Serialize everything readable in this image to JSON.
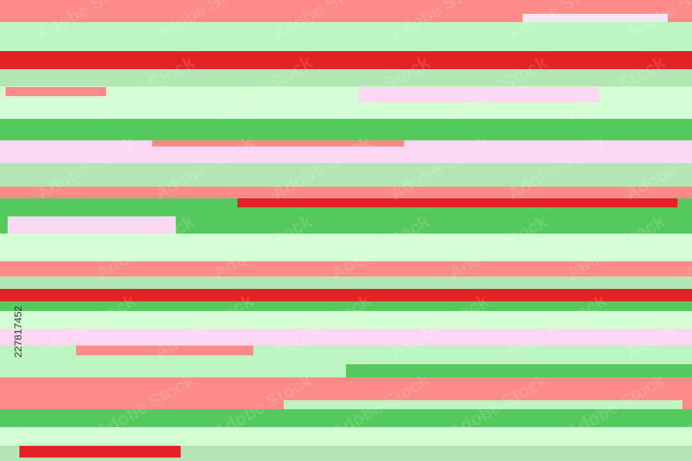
{
  "watermark": "Adobe Stock",
  "image_id": "227817452"
}
